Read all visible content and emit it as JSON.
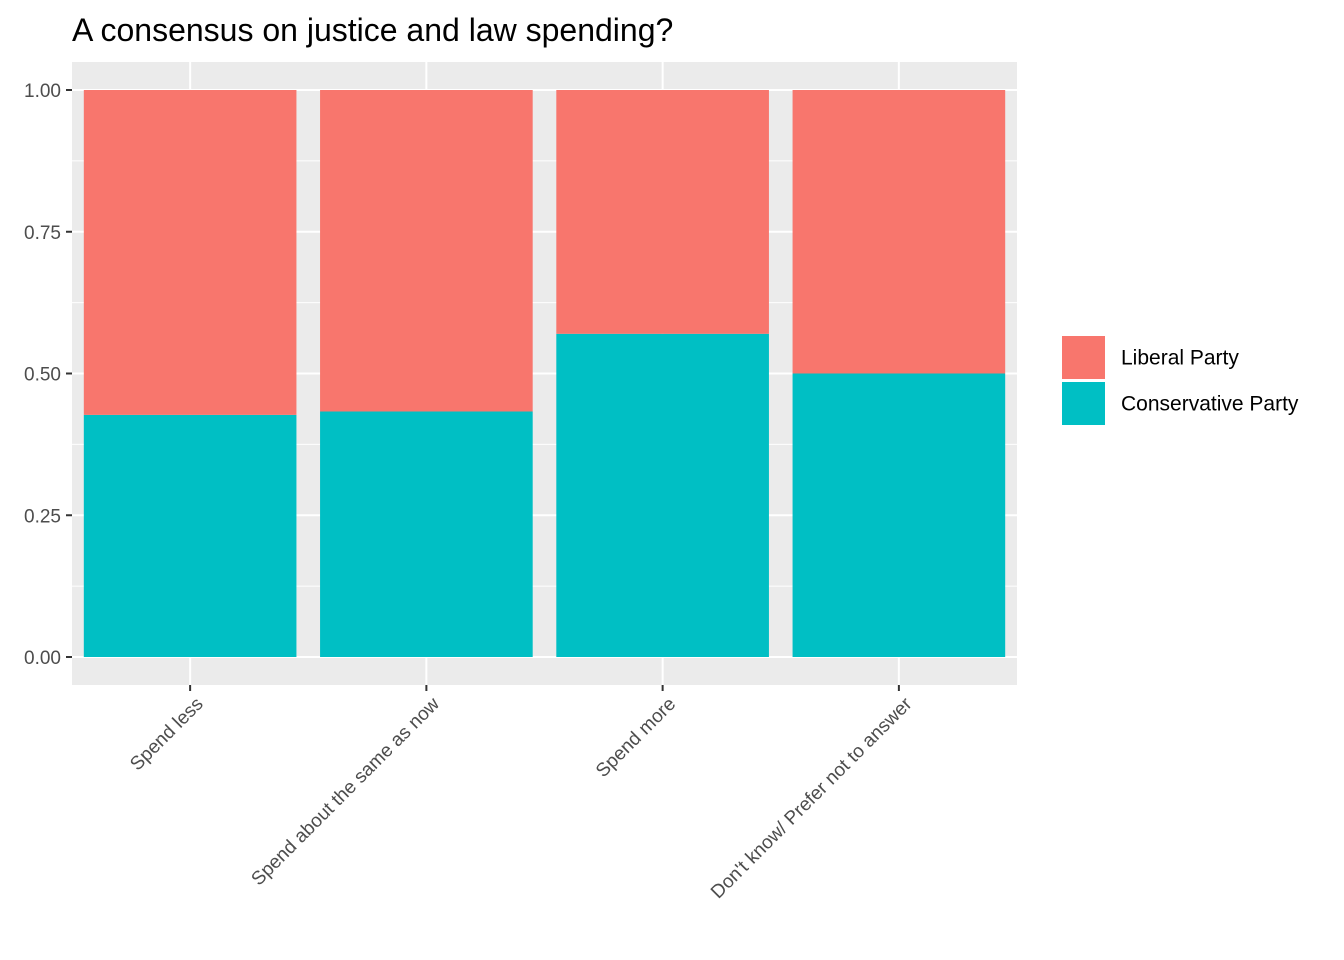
{
  "chart_data": {
    "type": "bar",
    "stacked": true,
    "position": "fill",
    "title": "A consensus on justice and law spending?",
    "xlabel": "",
    "ylabel": "",
    "ylim": [
      0,
      1
    ],
    "yticks": [
      "0.00",
      "0.25",
      "0.50",
      "0.75",
      "1.00"
    ],
    "ytick_values": [
      0,
      0.25,
      0.5,
      0.75,
      1
    ],
    "categories": [
      "Spend less",
      "Spend about the same as now",
      "Spend more",
      "Don't know/ Prefer not to answer"
    ],
    "series": [
      {
        "name": "Conservative Party",
        "color": "#00BFC4",
        "values": [
          0.427,
          0.433,
          0.57,
          0.5
        ]
      },
      {
        "name": "Liberal Party",
        "color": "#F8766D",
        "values": [
          0.573,
          0.567,
          0.43,
          0.5
        ]
      }
    ],
    "legend": {
      "position": "right",
      "order": [
        "Liberal Party",
        "Conservative Party"
      ]
    },
    "grid": true,
    "panel_background": "#EBEBEB",
    "grid_color": "#FFFFFF"
  }
}
